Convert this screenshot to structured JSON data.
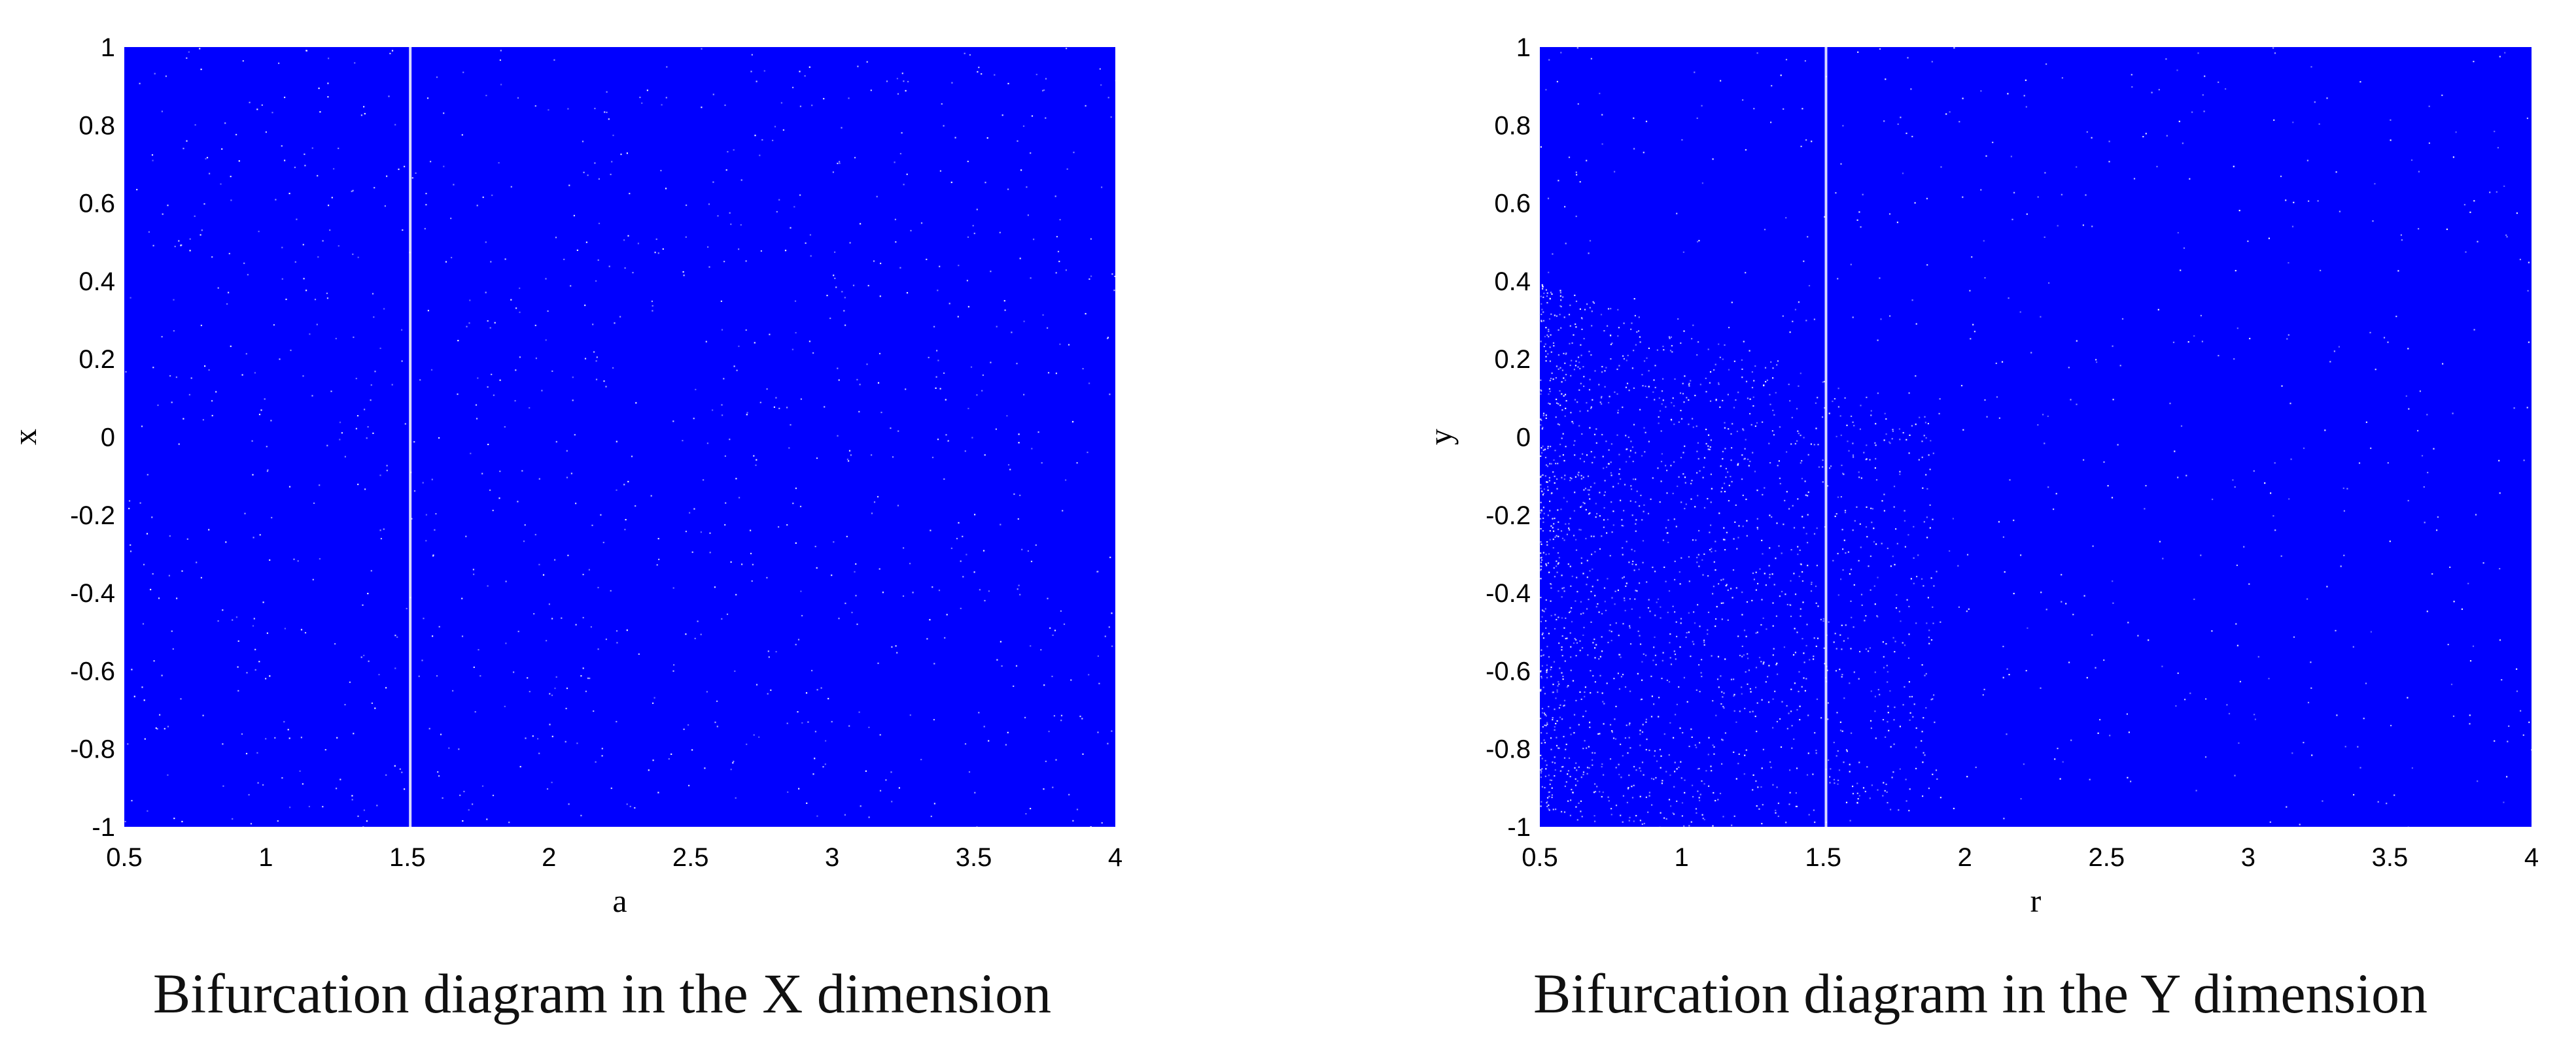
{
  "chart_data": [
    {
      "type": "scatter",
      "title": "",
      "xlabel": "a",
      "ylabel": "x",
      "xlim": [
        0.5,
        4
      ],
      "ylim": [
        -1,
        1
      ],
      "x_ticks": [
        "0.5",
        "1",
        "1.5",
        "2",
        "2.5",
        "3",
        "3.5",
        "4"
      ],
      "y_ticks": [
        "1",
        "0.8",
        "0.6",
        "0.4",
        "0.2",
        "0",
        "-0.2",
        "-0.4",
        "-0.6",
        "-0.8",
        "-1"
      ],
      "series": [
        {
          "color": "#0000ff",
          "x_range": [
            0.5,
            4
          ],
          "y_range": [
            -1,
            1
          ],
          "fill": "dense"
        }
      ],
      "gaps": [
        {
          "x": 1.51,
          "note": ""
        }
      ],
      "caption": "Bifurcation diagram in the X dimension"
    },
    {
      "type": "scatter",
      "title": "",
      "xlabel": "r",
      "ylabel": "y",
      "xlim": [
        0.5,
        4
      ],
      "ylim": [
        -1,
        1
      ],
      "x_ticks": [
        "0.5",
        "1",
        "1.5",
        "2",
        "2.5",
        "3",
        "3.5",
        "4"
      ],
      "y_ticks": [
        "1",
        "0.8",
        "0.6",
        "0.4",
        "0.2",
        "0",
        "-0.2",
        "-0.4",
        "-0.6",
        "-0.8",
        "-1"
      ],
      "series": [
        {
          "color": "#0000ff",
          "x_range": [
            0.5,
            4
          ],
          "y_range": [
            -1,
            1
          ],
          "fill": "dense"
        }
      ],
      "gaps": [
        {
          "x": 1.51,
          "note": ""
        }
      ],
      "caption": "Bifurcation diagram in the Y dimension"
    }
  ]
}
